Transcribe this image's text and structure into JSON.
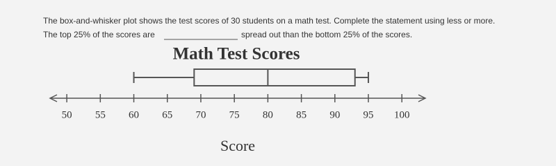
{
  "question": {
    "line1": "The box-and-whisker plot shows the test scores of 30 students on a math test. Complete the statement using less or more.",
    "line2_before": "The top 25% of the scores are",
    "line2_after": "spread out than the bottom 25% of the scores."
  },
  "chart_data": {
    "type": "box",
    "title": "Math Test Scores",
    "xlabel": "Score",
    "min": 60,
    "q1": 69,
    "median": 80,
    "q3": 93,
    "max": 95,
    "xlim": [
      47.5,
      103.5
    ],
    "xticks": [
      50,
      55,
      60,
      65,
      70,
      75,
      80,
      85,
      90,
      95,
      100
    ],
    "color": "#555555"
  }
}
